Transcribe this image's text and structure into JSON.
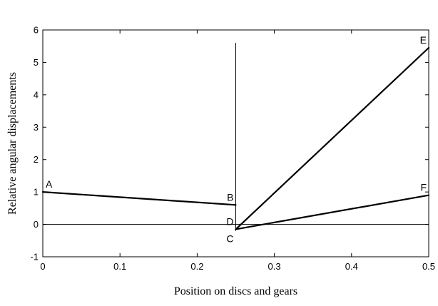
{
  "chart_data": {
    "type": "line",
    "title": "",
    "xlabel": "Position on discs and gears",
    "ylabel": "Relative angular displacements",
    "xlim": [
      0,
      0.5
    ],
    "ylim": [
      -1,
      6
    ],
    "x_ticks": [
      "0",
      "0.1",
      "0.2",
      "0.3",
      "0.4",
      "0.5"
    ],
    "y_ticks": [
      "-1",
      "0",
      "1",
      "2",
      "3",
      "4",
      "5",
      "6"
    ],
    "grid": false,
    "legend": "none",
    "reference_lines": {
      "zero_line_y": 0,
      "vertical_x": 0.25,
      "vertical_y_range": [
        -0.2,
        5.6
      ]
    },
    "series": [
      {
        "points": [
          [
            0,
            1.0
          ],
          [
            0.25,
            0.6
          ]
        ],
        "labels": [
          "A",
          "B"
        ]
      },
      {
        "points": [
          [
            0.25,
            -0.15
          ],
          [
            0.5,
            5.45
          ]
        ],
        "labels": [
          "D",
          "E"
        ]
      },
      {
        "points": [
          [
            0.25,
            -0.15
          ],
          [
            0.5,
            0.9
          ]
        ],
        "labels": [
          "C",
          "F"
        ]
      }
    ],
    "point_labels": [
      {
        "text": "A",
        "x": 0.0,
        "y": 1.0,
        "anchor": "above-right"
      },
      {
        "text": "B",
        "x": 0.25,
        "y": 0.6,
        "anchor": "above-left"
      },
      {
        "text": "D",
        "x": 0.25,
        "y": -0.15,
        "anchor": "above-left"
      },
      {
        "text": "C",
        "x": 0.25,
        "y": -0.15,
        "anchor": "below-left"
      },
      {
        "text": "E",
        "x": 0.5,
        "y": 5.45,
        "anchor": "above-left"
      },
      {
        "text": "F",
        "x": 0.5,
        "y": 0.9,
        "anchor": "above-left"
      }
    ],
    "colors": {
      "line": "#000000",
      "axes": "#000000",
      "background": "#ffffff"
    }
  }
}
